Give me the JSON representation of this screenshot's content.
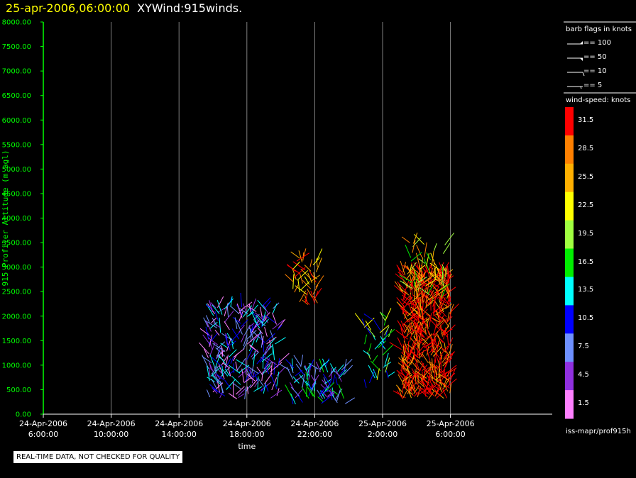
{
  "header": {
    "datetime": "25-apr-2006,06:00:00",
    "product": "XYWind:915winds."
  },
  "chart_data": {
    "type": "scatter",
    "title": "25-apr-2006,06:00:00 XYWind:915winds.",
    "ylabel": "915 Profiler Altitude (m agl)",
    "xlabel": "time",
    "ylim": [
      0,
      8000
    ],
    "xlim_hours": [
      0,
      30
    ],
    "yticks": [
      "8000.00",
      "7500.00",
      "7000.00",
      "6500.00",
      "6000.00",
      "5500.00",
      "5000.00",
      "4500.00",
      "4000.00",
      "3500.00",
      "3000.00",
      "2500.00",
      "2000.00",
      "1500.00",
      "1000.00",
      "500.00",
      "0.00"
    ],
    "xticks": [
      {
        "line1": "24-Apr-2006",
        "line2": "6:00:00"
      },
      {
        "line1": "24-Apr-2006",
        "line2": "10:00:00"
      },
      {
        "line1": "24-Apr-2006",
        "line2": "14:00:00"
      },
      {
        "line1": "24-Apr-2006",
        "line2": "18:00:00"
      },
      {
        "line1": "24-Apr-2006",
        "line2": "22:00:00"
      },
      {
        "line1": "25-Apr-2006",
        "line2": "2:00:00"
      },
      {
        "line1": "25-Apr-2006",
        "line2": "6:00:00"
      }
    ],
    "grid": true,
    "clusters": [
      {
        "t0": 9.7,
        "t1": 13.9,
        "y0": 300,
        "y1": 2200,
        "dominant_speed": 7.5,
        "density": 260
      },
      {
        "t0": 14.5,
        "t1": 17.8,
        "y0": 200,
        "y1": 1000,
        "dominant_speed": 10.5,
        "density": 90
      },
      {
        "t0": 14.7,
        "t1": 16.2,
        "y0": 2200,
        "y1": 3200,
        "dominant_speed": 28.5,
        "density": 45
      },
      {
        "t0": 18.9,
        "t1": 20.4,
        "y0": 500,
        "y1": 2000,
        "dominant_speed": 16.5,
        "density": 40
      },
      {
        "t0": 21.1,
        "t1": 24.0,
        "y0": 300,
        "y1": 2900,
        "dominant_speed": 31.5,
        "density": 520
      },
      {
        "t0": 21.5,
        "t1": 23.8,
        "y0": 2300,
        "y1": 3500,
        "dominant_speed": 22.5,
        "density": 60
      }
    ]
  },
  "legend": {
    "flags_title": "barb flags in knots",
    "flags": [
      {
        "label": "== 100"
      },
      {
        "label": "== 50"
      },
      {
        "label": "== 10"
      },
      {
        "label": "== 5"
      }
    ],
    "speed_title": "wind-speed: knots",
    "speed_scale": [
      {
        "label": "31.5",
        "color": "#ff0000"
      },
      {
        "label": "28.5",
        "color": "#ff8000"
      },
      {
        "label": "25.5",
        "color": "#ffb000"
      },
      {
        "label": "22.5",
        "color": "#ffff00"
      },
      {
        "label": "19.5",
        "color": "#a0ff40"
      },
      {
        "label": "16.5",
        "color": "#00ee00"
      },
      {
        "label": "13.5",
        "color": "#00ffff"
      },
      {
        "label": "10.5",
        "color": "#0000ff"
      },
      {
        "label": "7.5",
        "color": "#6e90ff"
      },
      {
        "label": "4.5",
        "color": "#9030e0"
      },
      {
        "label": "1.5",
        "color": "#ff80ff"
      }
    ],
    "footer": "iss-mapr/prof915h"
  },
  "notice": "REAL-TIME DATA, NOT CHECKED FOR QUALITY",
  "colors": {
    "axis": "#00ff00",
    "grid": "#808080",
    "background": "#000000"
  }
}
